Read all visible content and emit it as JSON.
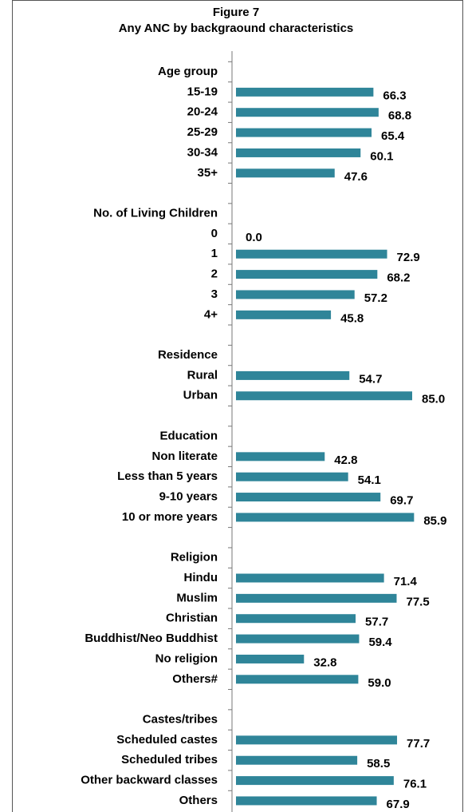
{
  "chart_data": {
    "type": "hbar",
    "title": "Figure 7",
    "subtitle": "Any ANC by backgraound characteristics",
    "color": "#2f8599",
    "xlim": [
      0,
      100
    ],
    "categories": [
      "Age group",
      "15-19",
      "20-24",
      "25-29",
      "30-34",
      "35+",
      null,
      "No. of Living Children",
      "0",
      "1",
      "2",
      "3",
      "4+",
      null,
      "Residence",
      "Rural",
      "Urban",
      null,
      "Education",
      "Non literate",
      "Less than 5 years",
      "9-10 years",
      "10 or more years",
      null,
      "Religion",
      "Hindu",
      "Muslim",
      "Christian",
      "Buddhist/Neo Buddhist",
      "No religion",
      "Others#",
      null,
      "Castes/tribes",
      "Scheduled castes",
      "Scheduled tribes",
      "Other backward classes",
      "Others"
    ],
    "values": [
      null,
      66.3,
      68.8,
      65.4,
      60.1,
      47.6,
      null,
      null,
      0,
      72.9,
      68.2,
      57.2,
      45.8,
      null,
      null,
      54.7,
      85,
      null,
      null,
      42.8,
      54.1,
      69.7,
      85.9,
      null,
      null,
      71.4,
      77.5,
      57.7,
      59.4,
      32.8,
      59,
      null,
      null,
      77.7,
      58.5,
      76.1,
      67.9
    ],
    "value_labels": [
      null,
      "66.3",
      "68.8",
      "65.4",
      "60.1",
      "47.6",
      null,
      null,
      "0.0",
      "72.9",
      "68.2",
      "57.2",
      "45.8",
      null,
      null,
      "54.7",
      "85.0",
      null,
      null,
      "42.8",
      "54.1",
      "69.7",
      "85.9",
      null,
      null,
      "71.4",
      "77.5",
      "57.7",
      "59.4",
      "32.8",
      "59.0",
      null,
      null,
      "77.7",
      "58.5",
      "76.1",
      "67.9"
    ]
  }
}
